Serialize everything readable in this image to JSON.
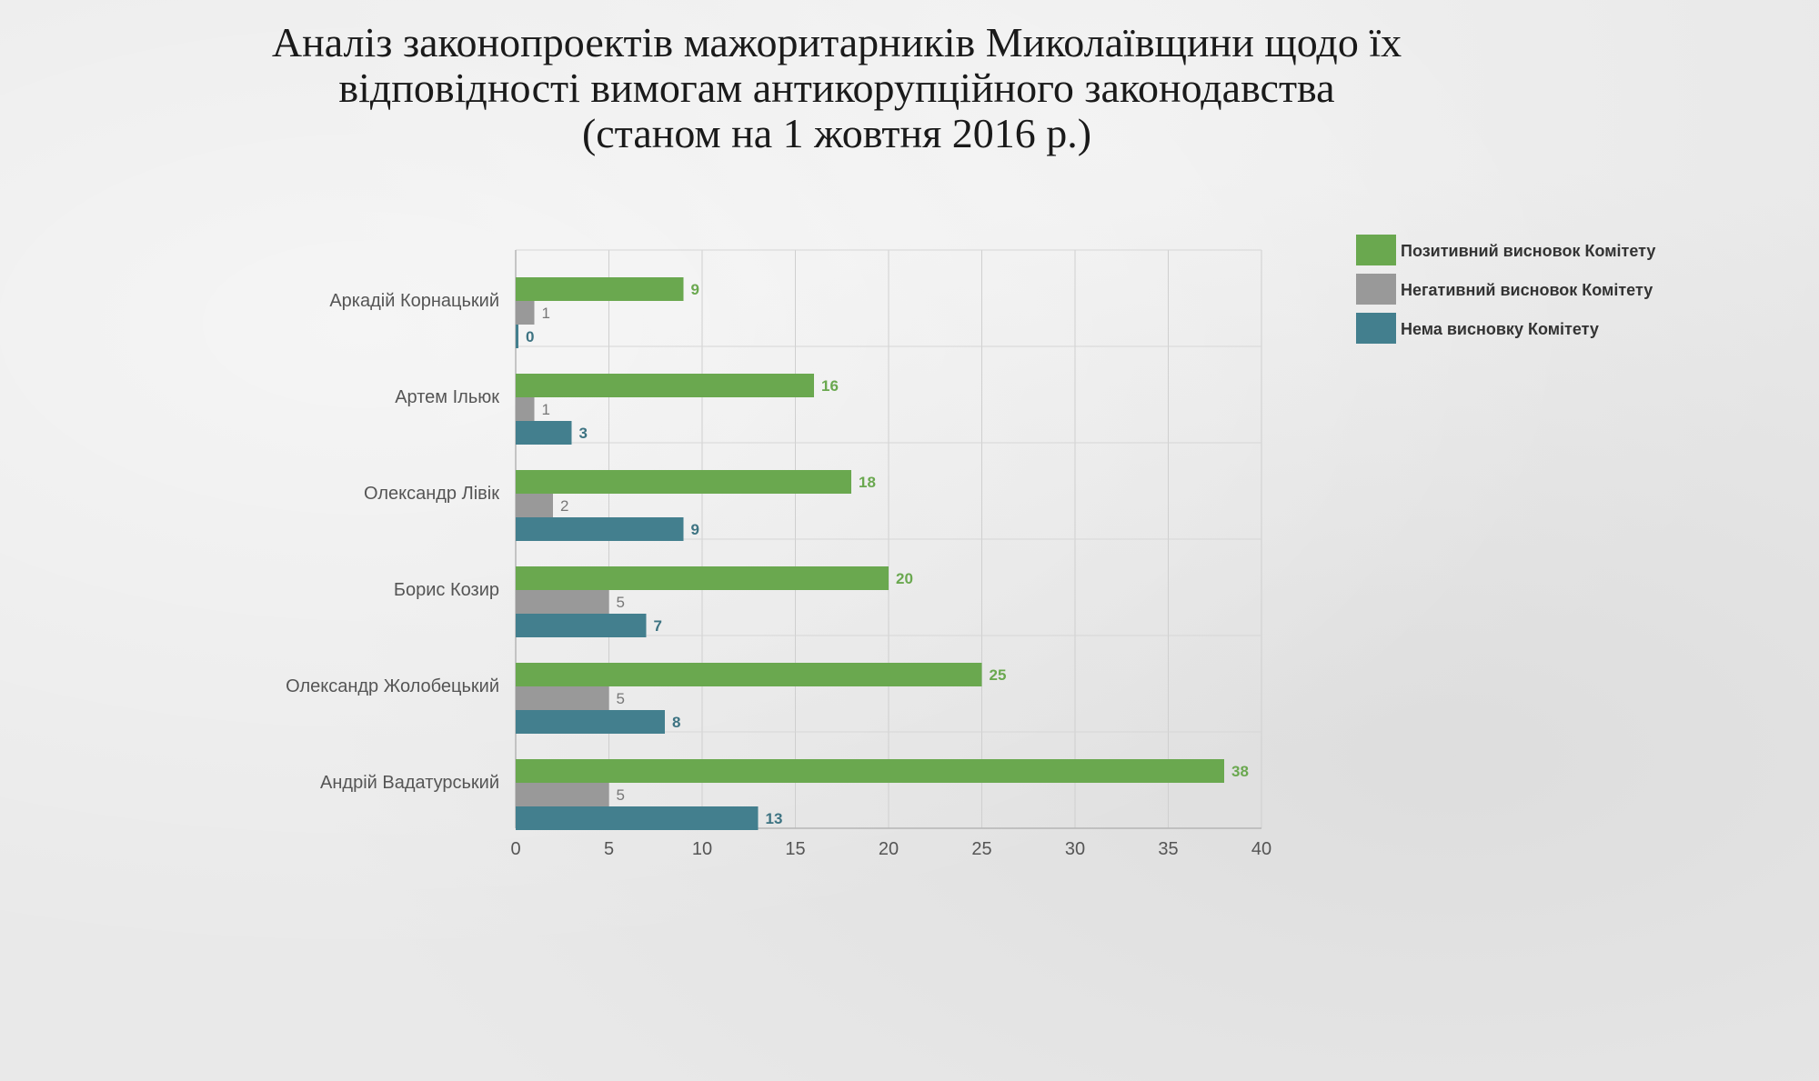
{
  "chart_data": {
    "type": "bar",
    "orientation": "horizontal",
    "title": [
      "Аналіз законопроектів мажоритарників Миколаївщини щодо їх",
      "відповідності вимогам антикорупційного законодавства",
      "(станом на 1 жовтня 2016 р.)"
    ],
    "categories": [
      "Аркадій Корнацький",
      "Артем Ільюк",
      "Олександр Лівік",
      "Борис Козир",
      "Олександр Жолобецький",
      "Андрій Вадатурський"
    ],
    "series": [
      {
        "name": "Позитивний висновок Комітету",
        "color": "#6aa84f",
        "label_color": "#6aa84f",
        "values": [
          9,
          16,
          18,
          20,
          25,
          38
        ]
      },
      {
        "name": "Негативний висновок Комітету",
        "color": "#999999",
        "label_color": "#777777",
        "values": [
          1,
          1,
          2,
          5,
          5,
          5
        ]
      },
      {
        "name": "Нема висновку Комітету",
        "color": "#437f8e",
        "label_color": "#3d7382",
        "values": [
          0,
          3,
          9,
          7,
          8,
          13
        ]
      }
    ],
    "xlim": [
      0,
      40
    ],
    "xticks": [
      0,
      5,
      10,
      15,
      20,
      25,
      30,
      35,
      40
    ],
    "grid": true,
    "legend_position": "top-right"
  }
}
